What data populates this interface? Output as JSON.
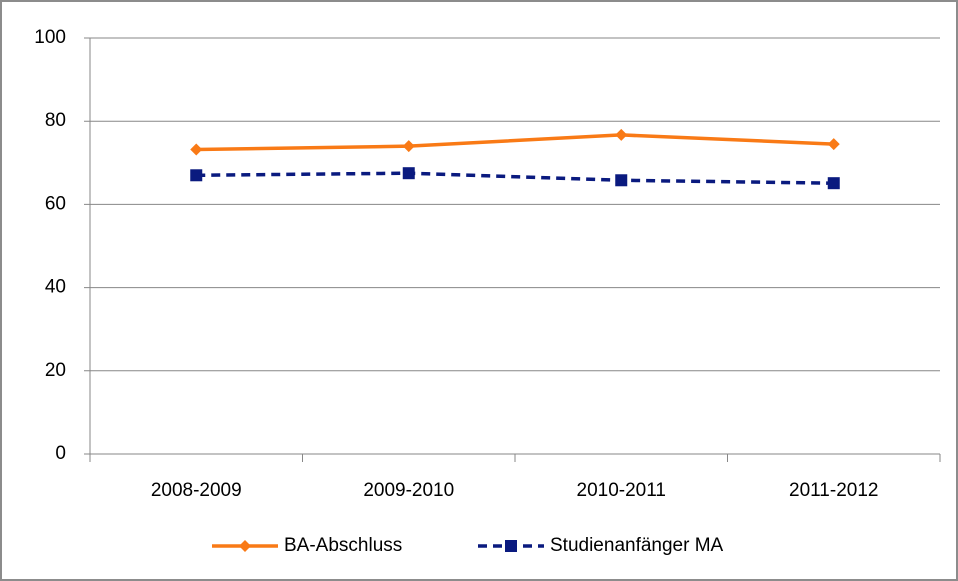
{
  "chart_data": {
    "type": "line",
    "categories": [
      "2008-2009",
      "2009-2010",
      "2010-2011",
      "2011-2012"
    ],
    "series": [
      {
        "name": "BA-Abschluss",
        "color": "#f97a16",
        "marker": "diamond",
        "dashed": false,
        "values": [
          73.2,
          74,
          76.7,
          74.5
        ]
      },
      {
        "name": "Studienanfänger MA",
        "color": "#0a1a7f",
        "marker": "square",
        "dashed": true,
        "values": [
          67,
          67.5,
          65.8,
          65.1
        ]
      }
    ],
    "ylim": [
      0,
      100
    ],
    "yticks": [
      0,
      20,
      40,
      60,
      80,
      100
    ],
    "grid": true,
    "legend": "bottom"
  }
}
